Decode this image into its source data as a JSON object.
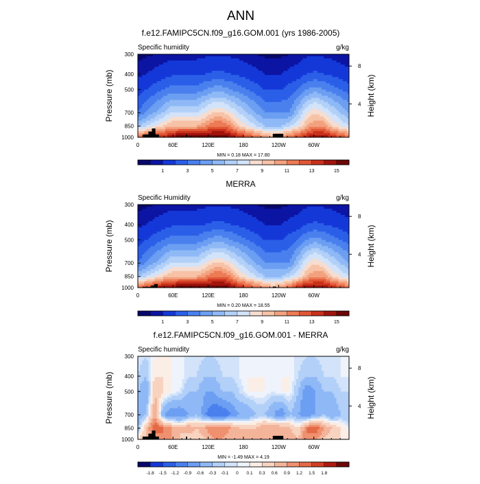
{
  "figure_title": "ANN",
  "colors": {
    "seq": [
      "#08086b",
      "#0c14a3",
      "#1438d8",
      "#2b5fe8",
      "#4a80ee",
      "#6c9ef2",
      "#8fb9f6",
      "#b2d0f8",
      "#d2e3fa",
      "#f6ddd0",
      "#f7c2a6",
      "#f3a17e",
      "#ec7b56",
      "#e05736",
      "#c9311c",
      "#a0140d",
      "#6d0707"
    ],
    "div": [
      "#08086b",
      "#1438d8",
      "#2b5fe8",
      "#4a80ee",
      "#6c9ef2",
      "#8fb9f6",
      "#b2d0f8",
      "#d2e3fa",
      "#eef3fc",
      "#fbeee6",
      "#f7d3c0",
      "#f4b49a",
      "#ef906f",
      "#e46a47",
      "#d13f26",
      "#ae1a10",
      "#6d0707"
    ],
    "terrain": "#000000"
  },
  "panels": [
    {
      "title": "f.e12.FAMIPC5CN.f09_g16.GOM.001 (yrs 1986-2005)",
      "left_label": "Specific humidity",
      "right_label": "g/kg",
      "ylabel": "Pressure (mb)",
      "ylabel_right": "Height (km)",
      "minmax": "MIN =   0.18  MAX =  17.80",
      "colorbar_labels": [
        "1",
        "3",
        "5",
        "7",
        "9",
        "11",
        "13",
        "15"
      ]
    },
    {
      "title": "MERRA",
      "left_label": "Specific Humidity",
      "right_label": "g/kg",
      "ylabel": "Pressure (mb)",
      "ylabel_right": "Height (km)",
      "minmax": "MIN =   0.20  MAX =  18.55",
      "colorbar_labels": [
        "1",
        "3",
        "5",
        "7",
        "9",
        "11",
        "13",
        "15"
      ]
    },
    {
      "title": "f.e12.FAMIPC5CN.f09_g16.GOM.001 - MERRA",
      "left_label": "Specific humidity",
      "right_label": "g/kg",
      "ylabel": "Pressure (mb)",
      "ylabel_right": "Height (km)",
      "minmax": "MIN =  -1.49  MAX =   4.19",
      "colorbar_labels": [
        "-1.8",
        "-1.5",
        "-1.2",
        "-0.9",
        "-0.6",
        "-0.3",
        "-0.1",
        "0",
        "0.1",
        "0.3",
        "0.6",
        "0.9",
        "1.2",
        "1.5",
        "1.8"
      ]
    }
  ],
  "chart_data": [
    {
      "type": "heatmap",
      "title": "f.e12.FAMIPC5CN.f09_g16.GOM.001 (yrs 1986-2005)",
      "xlabel": "",
      "ylabel": "Pressure (mb)",
      "ylabel_right": "Height (km)",
      "x_ticks": [
        "0",
        "60E",
        "120E",
        "180",
        "120W",
        "60W"
      ],
      "x_range": [
        0,
        360
      ],
      "y_ticks": [
        300,
        400,
        500,
        700,
        850,
        1000
      ],
      "y_range": [
        300,
        1000
      ],
      "y_scale": "log",
      "right_ticks": [
        "8",
        "4"
      ],
      "variable": "Specific humidity",
      "units": "g/kg",
      "min": 0.18,
      "max": 17.8,
      "colorbar_levels": [
        0.5,
        1,
        2,
        3,
        4,
        5,
        6,
        7,
        8,
        9,
        10,
        11,
        12,
        13,
        14,
        15,
        16
      ],
      "pressure_levels": [
        1000,
        850,
        700,
        500,
        400,
        300
      ],
      "q_by_level": [
        [
          12,
          13,
          14,
          14,
          15,
          16,
          16,
          16,
          16,
          16,
          16,
          15,
          14,
          13,
          12,
          11,
          10,
          11,
          12,
          13,
          14,
          15,
          15,
          14,
          13,
          12
        ],
        [
          6,
          7,
          8,
          9,
          10,
          10,
          10,
          10,
          11,
          12,
          12,
          11,
          9,
          8,
          7,
          6,
          6,
          6,
          7,
          8,
          10,
          11,
          11,
          9,
          8,
          7
        ],
        [
          3,
          4,
          5,
          6,
          7,
          7,
          7,
          7,
          8,
          9,
          9,
          8,
          7,
          6,
          5,
          4,
          4,
          4,
          4,
          6,
          8,
          9,
          8,
          7,
          6,
          5
        ],
        [
          1.5,
          2,
          2.5,
          3,
          3.5,
          3.5,
          3.5,
          3.5,
          4,
          4.5,
          4.5,
          4,
          3.5,
          3,
          2.5,
          2,
          2,
          2,
          2.5,
          3,
          4,
          4.5,
          4,
          3.5,
          3,
          2.5
        ],
        [
          0.8,
          1,
          1.2,
          1.5,
          1.8,
          1.8,
          1.8,
          1.8,
          2,
          2.2,
          2.2,
          2,
          1.8,
          1.5,
          1.2,
          1,
          1,
          1,
          1.2,
          1.5,
          2,
          2.2,
          2,
          1.8,
          1.5,
          1.2
        ],
        [
          0.3,
          0.4,
          0.5,
          0.6,
          0.7,
          0.7,
          0.7,
          0.7,
          0.8,
          0.9,
          0.9,
          0.8,
          0.7,
          0.6,
          0.5,
          0.4,
          0.4,
          0.4,
          0.5,
          0.6,
          0.8,
          0.9,
          0.8,
          0.7,
          0.6,
          0.5
        ]
      ]
    },
    {
      "type": "heatmap",
      "title": "MERRA",
      "xlabel": "",
      "ylabel": "Pressure (mb)",
      "ylabel_right": "Height (km)",
      "x_ticks": [
        "0",
        "60E",
        "120E",
        "180",
        "120W",
        "60W"
      ],
      "x_range": [
        0,
        360
      ],
      "y_ticks": [
        300,
        400,
        500,
        700,
        850,
        1000
      ],
      "y_range": [
        300,
        1000
      ],
      "y_scale": "log",
      "right_ticks": [
        "8",
        "4"
      ],
      "variable": "Specific Humidity",
      "units": "g/kg",
      "min": 0.2,
      "max": 18.55,
      "colorbar_levels": [
        0.5,
        1,
        2,
        3,
        4,
        5,
        6,
        7,
        8,
        9,
        10,
        11,
        12,
        13,
        14,
        15,
        16
      ],
      "pressure_levels": [
        1000,
        850,
        700,
        500,
        400,
        300
      ],
      "q_by_level": [
        [
          12,
          13,
          14,
          15,
          15,
          16,
          16,
          16,
          16,
          16,
          16,
          15,
          14,
          13,
          12,
          11,
          10,
          11,
          12,
          14,
          15,
          15,
          15,
          14,
          13,
          12
        ],
        [
          6,
          7,
          8,
          9,
          10,
          10,
          10,
          10,
          11,
          12,
          12,
          11,
          9,
          8,
          7,
          6,
          6,
          6,
          7,
          8,
          10,
          11,
          11,
          9,
          8,
          7
        ],
        [
          3,
          4,
          5,
          6,
          7,
          7,
          7,
          7,
          8,
          9,
          9,
          8,
          7,
          6,
          5,
          4,
          4,
          4,
          4,
          6,
          8,
          9,
          8,
          7,
          6,
          5
        ],
        [
          1.5,
          2,
          2.5,
          3,
          3.5,
          3.5,
          3.5,
          3.5,
          4,
          4.5,
          4.5,
          4,
          3.5,
          3,
          2.5,
          2,
          2,
          2,
          2.5,
          3,
          4,
          4.5,
          4,
          3.5,
          3,
          2.5
        ],
        [
          0.8,
          1,
          1.2,
          1.5,
          1.8,
          1.8,
          1.8,
          1.8,
          2,
          2.2,
          2.2,
          2,
          1.8,
          1.5,
          1.2,
          1,
          1,
          1,
          1.2,
          1.5,
          2,
          2.2,
          2,
          1.8,
          1.5,
          1.2
        ],
        [
          0.3,
          0.4,
          0.5,
          0.6,
          0.7,
          0.7,
          0.7,
          0.7,
          0.8,
          0.9,
          0.9,
          0.8,
          0.7,
          0.6,
          0.5,
          0.4,
          0.4,
          0.4,
          0.5,
          0.6,
          0.8,
          0.9,
          0.8,
          0.7,
          0.6,
          0.5
        ]
      ]
    },
    {
      "type": "heatmap",
      "title": "f.e12.FAMIPC5CN.f09_g16.GOM.001 - MERRA",
      "xlabel": "",
      "ylabel": "Pressure (mb)",
      "ylabel_right": "Height (km)",
      "x_ticks": [
        "0",
        "60E",
        "120E",
        "180",
        "120W",
        "60W"
      ],
      "x_range": [
        0,
        360
      ],
      "y_ticks": [
        300,
        400,
        500,
        700,
        850,
        1000
      ],
      "y_range": [
        300,
        1000
      ],
      "y_scale": "log",
      "right_ticks": [
        "8",
        "4"
      ],
      "variable": "Specific humidity",
      "units": "g/kg",
      "min": -1.49,
      "max": 4.19,
      "colorbar_levels": [
        -1.8,
        -1.5,
        -1.2,
        -0.9,
        -0.6,
        -0.3,
        -0.1,
        0,
        0.1,
        0.3,
        0.6,
        0.9,
        1.2,
        1.5,
        1.8
      ],
      "pressure_levels": [
        1000,
        850,
        700,
        500,
        400,
        300
      ],
      "q_by_level": [
        [
          0.3,
          0.6,
          0.9,
          1.2,
          0.9,
          0.6,
          0.3,
          0.3,
          0.6,
          0.9,
          0.9,
          0.6,
          0.6,
          0.9,
          0.9,
          0.6,
          0.6,
          0.9,
          0.9,
          0.6,
          1.2,
          0.9,
          0.6,
          0.3,
          0.3,
          0.3
        ],
        [
          -0.3,
          0.6,
          1.5,
          1.2,
          0.9,
          0.6,
          0.9,
          0.6,
          0.9,
          1.2,
          1.2,
          0.9,
          0.6,
          0.6,
          0.6,
          0.9,
          0.9,
          0.9,
          0.6,
          0.3,
          1.2,
          1.5,
          0.9,
          0.6,
          0.3,
          0
        ],
        [
          -0.6,
          -0.3,
          0.9,
          -0.6,
          -0.9,
          -0.9,
          -0.6,
          -0.3,
          -0.9,
          -1.2,
          -1.2,
          -0.9,
          -0.6,
          -0.6,
          -0.3,
          -0.3,
          -0.6,
          -0.9,
          -0.3,
          -0.6,
          -0.9,
          -0.6,
          -0.3,
          -0.6,
          -0.3,
          -0.3
        ],
        [
          -0.3,
          -0.6,
          0.6,
          0.3,
          0.1,
          0,
          -0.3,
          -0.3,
          -0.6,
          -0.6,
          -0.3,
          -0.3,
          -0.1,
          0.1,
          0.1,
          0.1,
          0,
          0.1,
          0.1,
          -0.3,
          -0.9,
          -0.6,
          -0.3,
          -0.3,
          -0.1,
          -0.1
        ],
        [
          -0.1,
          -0.3,
          0.3,
          0.3,
          0.1,
          0.1,
          -0.1,
          -0.1,
          -0.3,
          -0.3,
          -0.1,
          -0.1,
          0,
          0.1,
          0.1,
          0.1,
          0.1,
          0.1,
          0.1,
          -0.1,
          -0.3,
          -0.3,
          -0.1,
          -0.1,
          0,
          0
        ],
        [
          0,
          -0.1,
          0.1,
          0.1,
          0.1,
          0,
          0,
          0,
          -0.1,
          -0.1,
          0,
          0,
          0,
          0,
          0,
          0,
          0,
          0,
          0,
          0,
          -0.1,
          -0.1,
          0,
          0,
          0,
          0
        ]
      ]
    }
  ]
}
